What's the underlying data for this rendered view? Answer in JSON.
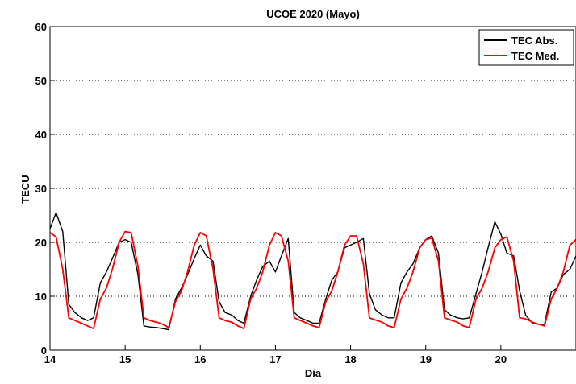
{
  "chart_data": {
    "type": "line",
    "title": "UCOE 2020 (Mayo)",
    "xlabel": "Día",
    "ylabel": "TECU",
    "xlim": [
      14,
      21
    ],
    "ylim": [
      0,
      60
    ],
    "x_ticks": [
      14,
      15,
      16,
      17,
      18,
      19,
      20
    ],
    "y_ticks": [
      0,
      10,
      20,
      30,
      40,
      50,
      60
    ],
    "grid": "y-dotted",
    "legend_position": "top-right",
    "series": [
      {
        "name": "TEC Abs.",
        "color": "#000000",
        "points": [
          [
            14.0,
            22.5
          ],
          [
            14.08,
            25.5
          ],
          [
            14.17,
            22.0
          ],
          [
            14.25,
            8.5
          ],
          [
            14.33,
            7.0
          ],
          [
            14.42,
            6.0
          ],
          [
            14.5,
            5.5
          ],
          [
            14.58,
            6.0
          ],
          [
            14.67,
            12.5
          ],
          [
            14.75,
            14.5
          ],
          [
            14.83,
            17.0
          ],
          [
            14.92,
            20.0
          ],
          [
            15.0,
            20.5
          ],
          [
            15.08,
            20.0
          ],
          [
            15.17,
            14.0
          ],
          [
            15.25,
            4.5
          ],
          [
            15.33,
            4.3
          ],
          [
            15.42,
            4.2
          ],
          [
            15.5,
            4.0
          ],
          [
            15.58,
            3.8
          ],
          [
            15.67,
            9.5
          ],
          [
            15.75,
            11.5
          ],
          [
            15.83,
            14.0
          ],
          [
            15.92,
            17.0
          ],
          [
            16.0,
            19.5
          ],
          [
            16.08,
            17.5
          ],
          [
            16.17,
            16.5
          ],
          [
            16.25,
            9.0
          ],
          [
            16.33,
            7.0
          ],
          [
            16.42,
            6.5
          ],
          [
            16.5,
            5.5
          ],
          [
            16.58,
            5.0
          ],
          [
            16.67,
            10.0
          ],
          [
            16.75,
            13.0
          ],
          [
            16.83,
            15.5
          ],
          [
            16.92,
            16.5
          ],
          [
            17.0,
            14.5
          ],
          [
            17.08,
            17.5
          ],
          [
            17.17,
            20.7
          ],
          [
            17.25,
            7.0
          ],
          [
            17.33,
            6.0
          ],
          [
            17.42,
            5.5
          ],
          [
            17.5,
            5.0
          ],
          [
            17.58,
            5.0
          ],
          [
            17.67,
            9.5
          ],
          [
            17.75,
            13.0
          ],
          [
            17.83,
            14.5
          ],
          [
            17.92,
            19.0
          ],
          [
            18.0,
            19.5
          ],
          [
            18.08,
            20.0
          ],
          [
            18.17,
            20.7
          ],
          [
            18.25,
            10.5
          ],
          [
            18.33,
            7.5
          ],
          [
            18.42,
            6.5
          ],
          [
            18.5,
            6.0
          ],
          [
            18.58,
            6.0
          ],
          [
            18.67,
            12.5
          ],
          [
            18.75,
            14.5
          ],
          [
            18.83,
            16.0
          ],
          [
            18.92,
            19.0
          ],
          [
            19.0,
            20.5
          ],
          [
            19.08,
            21.2
          ],
          [
            19.17,
            18.0
          ],
          [
            19.25,
            7.5
          ],
          [
            19.33,
            6.5
          ],
          [
            19.42,
            6.0
          ],
          [
            19.5,
            5.8
          ],
          [
            19.58,
            6.0
          ],
          [
            19.67,
            10.5
          ],
          [
            19.75,
            14.5
          ],
          [
            19.83,
            19.0
          ],
          [
            19.92,
            23.8
          ],
          [
            20.0,
            21.5
          ],
          [
            20.08,
            18.0
          ],
          [
            20.17,
            17.5
          ],
          [
            20.25,
            11.0
          ],
          [
            20.33,
            6.5
          ],
          [
            20.42,
            5.0
          ],
          [
            20.5,
            4.8
          ],
          [
            20.58,
            4.8
          ],
          [
            20.67,
            10.8
          ],
          [
            20.75,
            11.5
          ],
          [
            20.83,
            14.0
          ],
          [
            20.92,
            15.0
          ],
          [
            21.0,
            17.5
          ]
        ]
      },
      {
        "name": "TEC Med.",
        "color": "#ff0000",
        "points": [
          [
            14.0,
            21.8
          ],
          [
            14.08,
            21.0
          ],
          [
            14.17,
            15.0
          ],
          [
            14.25,
            6.0
          ],
          [
            14.33,
            5.5
          ],
          [
            14.42,
            5.0
          ],
          [
            14.5,
            4.5
          ],
          [
            14.58,
            4.0
          ],
          [
            14.67,
            9.5
          ],
          [
            14.75,
            11.5
          ],
          [
            14.83,
            15.0
          ],
          [
            14.92,
            20.0
          ],
          [
            15.0,
            22.0
          ],
          [
            15.08,
            21.8
          ],
          [
            15.17,
            15.5
          ],
          [
            15.25,
            6.0
          ],
          [
            15.33,
            5.5
          ],
          [
            15.42,
            5.2
          ],
          [
            15.5,
            4.8
          ],
          [
            15.58,
            4.2
          ],
          [
            15.67,
            9.0
          ],
          [
            15.75,
            11.0
          ],
          [
            15.83,
            14.5
          ],
          [
            15.92,
            19.5
          ],
          [
            16.0,
            21.8
          ],
          [
            16.08,
            21.2
          ],
          [
            16.17,
            15.0
          ],
          [
            16.25,
            6.0
          ],
          [
            16.33,
            5.5
          ],
          [
            16.42,
            5.2
          ],
          [
            16.5,
            4.5
          ],
          [
            16.58,
            4.0
          ],
          [
            16.67,
            9.5
          ],
          [
            16.75,
            11.5
          ],
          [
            16.83,
            14.5
          ],
          [
            16.92,
            19.5
          ],
          [
            17.0,
            21.8
          ],
          [
            17.08,
            21.2
          ],
          [
            17.17,
            16.5
          ],
          [
            17.25,
            6.0
          ],
          [
            17.33,
            5.5
          ],
          [
            17.42,
            5.0
          ],
          [
            17.5,
            4.5
          ],
          [
            17.58,
            4.2
          ],
          [
            17.67,
            9.0
          ],
          [
            17.75,
            11.0
          ],
          [
            17.83,
            14.5
          ],
          [
            17.92,
            19.5
          ],
          [
            18.0,
            21.2
          ],
          [
            18.08,
            21.2
          ],
          [
            18.17,
            16.0
          ],
          [
            18.25,
            6.0
          ],
          [
            18.33,
            5.6
          ],
          [
            18.42,
            5.2
          ],
          [
            18.5,
            4.5
          ],
          [
            18.58,
            4.2
          ],
          [
            18.67,
            9.5
          ],
          [
            18.75,
            11.5
          ],
          [
            18.83,
            14.5
          ],
          [
            18.92,
            19.0
          ],
          [
            19.0,
            20.5
          ],
          [
            19.08,
            20.8
          ],
          [
            19.17,
            16.5
          ],
          [
            19.25,
            6.0
          ],
          [
            19.33,
            5.6
          ],
          [
            19.42,
            5.2
          ],
          [
            19.5,
            4.5
          ],
          [
            19.58,
            4.2
          ],
          [
            19.67,
            9.5
          ],
          [
            19.75,
            11.5
          ],
          [
            19.83,
            14.5
          ],
          [
            19.92,
            19.0
          ],
          [
            20.0,
            20.5
          ],
          [
            20.08,
            21.0
          ],
          [
            20.17,
            16.5
          ],
          [
            20.25,
            6.0
          ],
          [
            20.33,
            5.8
          ],
          [
            20.42,
            5.2
          ],
          [
            20.5,
            4.8
          ],
          [
            20.58,
            4.5
          ],
          [
            20.67,
            9.5
          ],
          [
            20.75,
            11.5
          ],
          [
            20.83,
            14.5
          ],
          [
            20.92,
            19.5
          ],
          [
            21.0,
            20.5
          ]
        ]
      }
    ]
  }
}
